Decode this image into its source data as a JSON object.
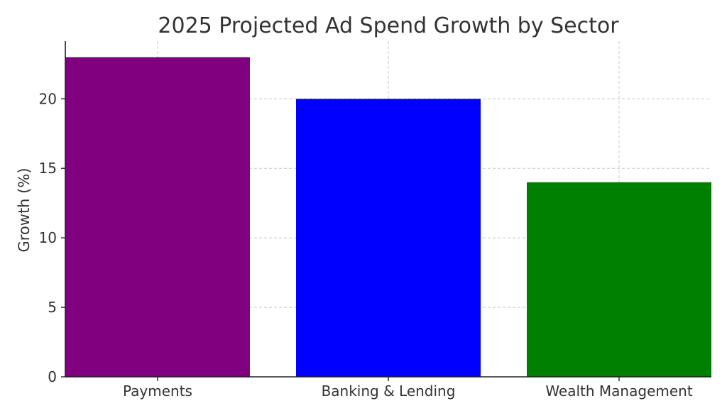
{
  "chart_data": {
    "type": "bar",
    "title": "2025 Projected Ad Spend Growth by Sector",
    "xlabel": "",
    "ylabel": "Growth (%)",
    "categories": [
      "Payments",
      "Banking & Lending",
      "Wealth Management"
    ],
    "values": [
      23,
      20,
      14
    ],
    "colors": [
      "#800080",
      "#0000ff",
      "#008000"
    ],
    "ylim": [
      0,
      24.15
    ],
    "yticks": [
      0,
      5,
      10,
      15,
      20
    ],
    "grid": true,
    "legend": "none"
  }
}
